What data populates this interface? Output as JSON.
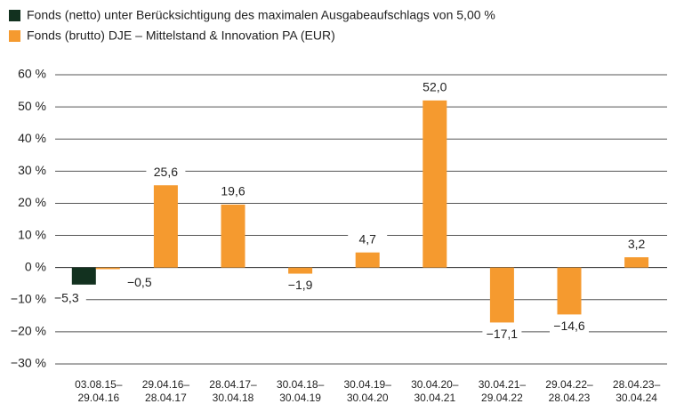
{
  "chart_data": {
    "type": "bar",
    "categories": [
      "03.08.15–29.04.16",
      "29.04.16–28.04.17",
      "28.04.17–30.04.18",
      "30.04.18–30.04.19",
      "30.04.19–30.04.20",
      "30.04.20–30.04.21",
      "30.04.21–29.04.22",
      "29.04.22–28.04.23",
      "28.04.23–30.04.24"
    ],
    "series": [
      {
        "name": "Fonds (netto) unter Berücksichtigung des maximalen Ausgabeaufschlags von 5,00 %",
        "color": "#12311f",
        "values": [
          -5.3,
          null,
          null,
          null,
          null,
          null,
          null,
          null,
          null
        ],
        "value_labels": [
          "−5,3",
          null,
          null,
          null,
          null,
          null,
          null,
          null,
          null
        ]
      },
      {
        "name": "Fonds (brutto) DJE – Mittelstand & Innovation PA (EUR)",
        "color": "#f59a2f",
        "values": [
          -0.5,
          25.6,
          19.6,
          -1.9,
          4.7,
          52.0,
          -17.1,
          -14.6,
          3.2
        ],
        "value_labels": [
          "−0,5",
          "25,6",
          "19,6",
          "−1,9",
          "4,7",
          "52,0",
          "−17,1",
          "−14,6",
          "3,2"
        ]
      }
    ],
    "ylim": [
      -30,
      60
    ],
    "yticks": [
      {
        "value": -30,
        "label": "−30 %"
      },
      {
        "value": -20,
        "label": "−20 %"
      },
      {
        "value": -10,
        "label": "−10 %"
      },
      {
        "value": 0,
        "label": "0 %"
      },
      {
        "value": 10,
        "label": "10 %"
      },
      {
        "value": 20,
        "label": "20 %"
      },
      {
        "value": 30,
        "label": "30 %"
      },
      {
        "value": 40,
        "label": "40 %"
      },
      {
        "value": 50,
        "label": "50 %"
      },
      {
        "value": 60,
        "label": "60 %"
      }
    ],
    "grid": true
  }
}
